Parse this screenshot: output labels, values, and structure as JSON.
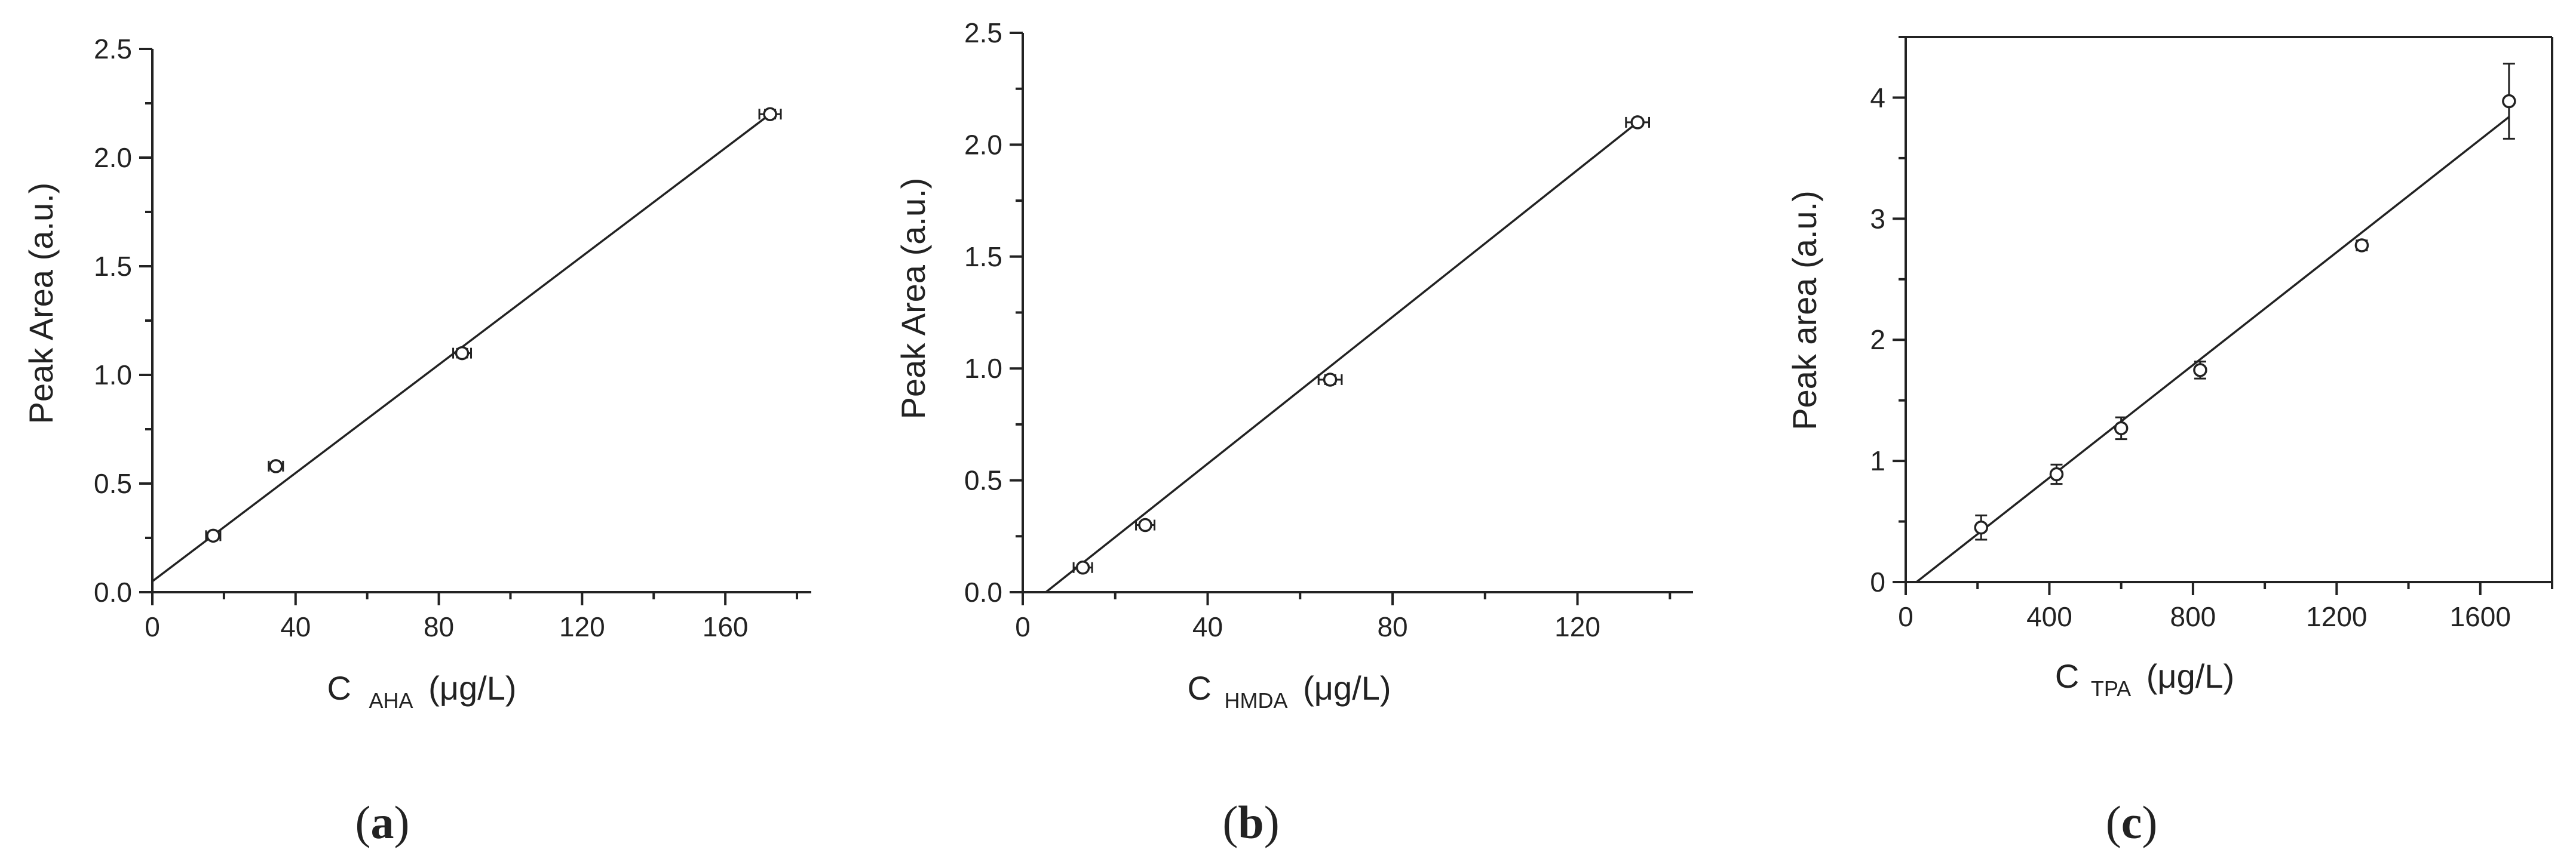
{
  "colors": {
    "ink": "#222222",
    "background": "#ffffff"
  },
  "chart_data": [
    {
      "type": "scatter",
      "panel_label": "a",
      "ylabel": "Peak Area (a.u.)",
      "xlabel_main": "C",
      "xlabel_sub": "AHA",
      "xlabel_unit": "(μg/L)",
      "xlim": [
        0,
        184
      ],
      "ylim": [
        0,
        2.5
      ],
      "xticks": [
        0,
        40,
        80,
        120,
        160
      ],
      "yticks": [
        0.0,
        0.5,
        1.0,
        1.5,
        2.0,
        2.5
      ],
      "ytick_labels": [
        "0.0",
        "0.5",
        "1.0",
        "1.5",
        "2.0",
        "2.5"
      ],
      "points": [
        {
          "x": 17,
          "y": 0.26,
          "xerr": 2,
          "yerr": 0.01
        },
        {
          "x": 34.5,
          "y": 0.58,
          "xerr": 2,
          "yerr": 0.01
        },
        {
          "x": 86.5,
          "y": 1.1,
          "xerr": 2.5,
          "yerr": 0.02
        },
        {
          "x": 172.5,
          "y": 2.2,
          "xerr": 3,
          "yerr": 0.02
        }
      ],
      "fit_line": [
        [
          0,
          0.05
        ],
        [
          172.5,
          2.2
        ]
      ]
    },
    {
      "type": "scatter",
      "panel_label": "b",
      "ylabel": "Peak Area (a.u.)",
      "xlabel_main": "C",
      "xlabel_sub": "HMDA",
      "xlabel_unit": "(μg/L)",
      "xlim": [
        0,
        145
      ],
      "ylim": [
        0,
        2.5
      ],
      "xticks": [
        0,
        40,
        80,
        120
      ],
      "yticks": [
        0.0,
        0.5,
        1.0,
        1.5,
        2.0,
        2.5
      ],
      "ytick_labels": [
        "0.0",
        "0.5",
        "1.0",
        "1.5",
        "2.0",
        "2.5"
      ],
      "points": [
        {
          "x": 13,
          "y": 0.11,
          "xerr": 2,
          "yerr": 0.01
        },
        {
          "x": 26.5,
          "y": 0.3,
          "xerr": 2,
          "yerr": 0.01
        },
        {
          "x": 66.5,
          "y": 0.95,
          "xerr": 2.5,
          "yerr": 0.02
        },
        {
          "x": 133,
          "y": 2.1,
          "xerr": 2.5,
          "yerr": 0.01
        }
      ],
      "fit_line": [
        [
          5,
          0.0
        ],
        [
          133,
          2.1
        ]
      ]
    },
    {
      "type": "scatter",
      "panel_label": "c",
      "ylabel": "Peak area (a.u.)",
      "xlabel_main": "C",
      "xlabel_sub": "TPA",
      "xlabel_unit": "(μg/L)",
      "xlim": [
        0,
        1800
      ],
      "ylim": [
        0,
        4.5
      ],
      "xticks": [
        0,
        400,
        800,
        1200,
        1600
      ],
      "yticks": [
        0,
        1,
        2,
        3,
        4
      ],
      "ytick_labels": [
        "0",
        "1",
        "2",
        "3",
        "4"
      ],
      "points": [
        {
          "x": 210,
          "y": 0.45,
          "xerr": 0,
          "yerr": 0.1
        },
        {
          "x": 420,
          "y": 0.89,
          "xerr": 0,
          "yerr": 0.08
        },
        {
          "x": 600,
          "y": 1.27,
          "xerr": 0,
          "yerr": 0.09
        },
        {
          "x": 820,
          "y": 1.75,
          "xerr": 0,
          "yerr": 0.07
        },
        {
          "x": 1270,
          "y": 2.78,
          "xerr": 0,
          "yerr": 0.04
        },
        {
          "x": 1680,
          "y": 3.97,
          "xerr": 0,
          "yerr": 0.31
        }
      ],
      "fit_line": [
        [
          30,
          0.0
        ],
        [
          1680,
          3.84
        ]
      ]
    }
  ]
}
